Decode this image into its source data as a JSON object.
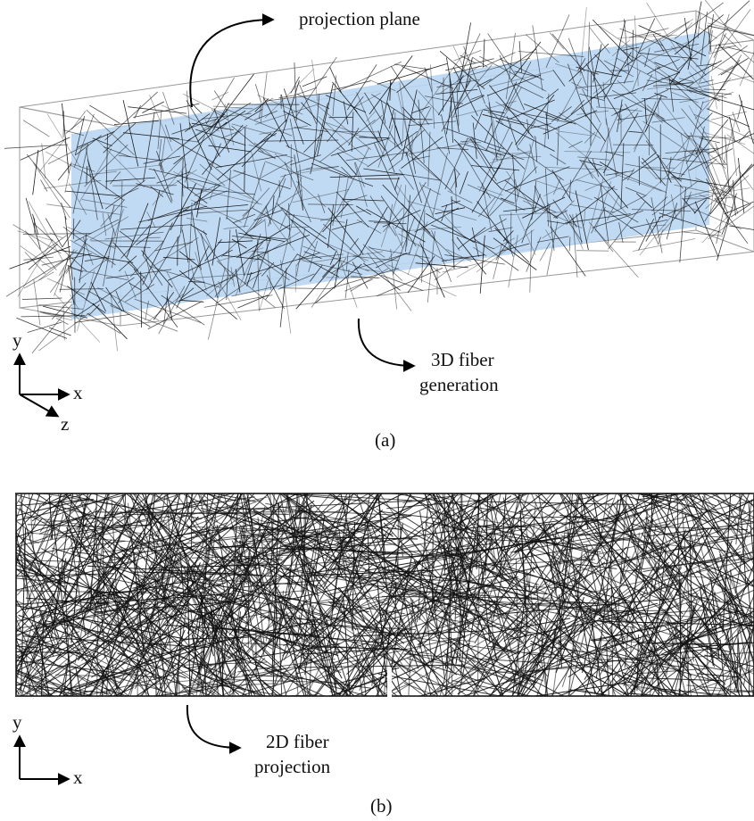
{
  "panel_a": {
    "label": "(a)",
    "projection_label": "projection  plane",
    "generation_label": [
      "3D fiber",
      "generation"
    ],
    "axes": {
      "y": "y",
      "x": "x",
      "z": "z"
    }
  },
  "panel_b": {
    "label": "(b)",
    "projection_label": [
      "2D fiber",
      "projection"
    ],
    "axes": {
      "y": "y",
      "x": "x"
    }
  }
}
